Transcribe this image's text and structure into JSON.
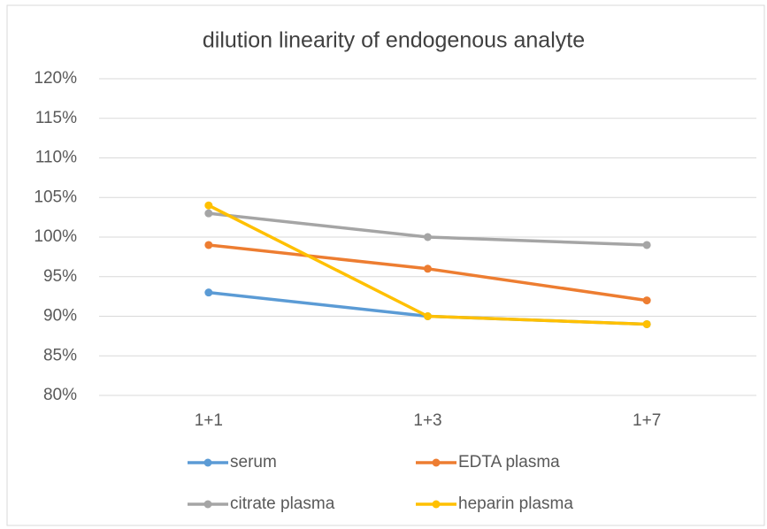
{
  "chart_data": {
    "type": "line",
    "title": "dilution linearity of endogenous analyte",
    "categories": [
      "1+1",
      "1+3",
      "1+7"
    ],
    "series": [
      {
        "name": "serum",
        "color": "#5b9bd5",
        "values": [
          93,
          90,
          89
        ]
      },
      {
        "name": "EDTA plasma",
        "color": "#ed7d31",
        "values": [
          99,
          96,
          92
        ]
      },
      {
        "name": "citrate plasma",
        "color": "#a5a5a5",
        "values": [
          103,
          100,
          99
        ]
      },
      {
        "name": "heparin plasma",
        "color": "#ffc000",
        "values": [
          104,
          90,
          89
        ]
      }
    ],
    "ylim": [
      80,
      120
    ],
    "yticks": [
      {
        "value": 80,
        "label": "80%"
      },
      {
        "value": 85,
        "label": "85%"
      },
      {
        "value": 90,
        "label": "90%"
      },
      {
        "value": 95,
        "label": "95%"
      },
      {
        "value": 100,
        "label": "100%"
      },
      {
        "value": 105,
        "label": "105%"
      },
      {
        "value": 110,
        "label": "110%"
      },
      {
        "value": 115,
        "label": "115%"
      },
      {
        "value": 120,
        "label": "120%"
      }
    ],
    "grid": true,
    "legend": "bottom"
  }
}
